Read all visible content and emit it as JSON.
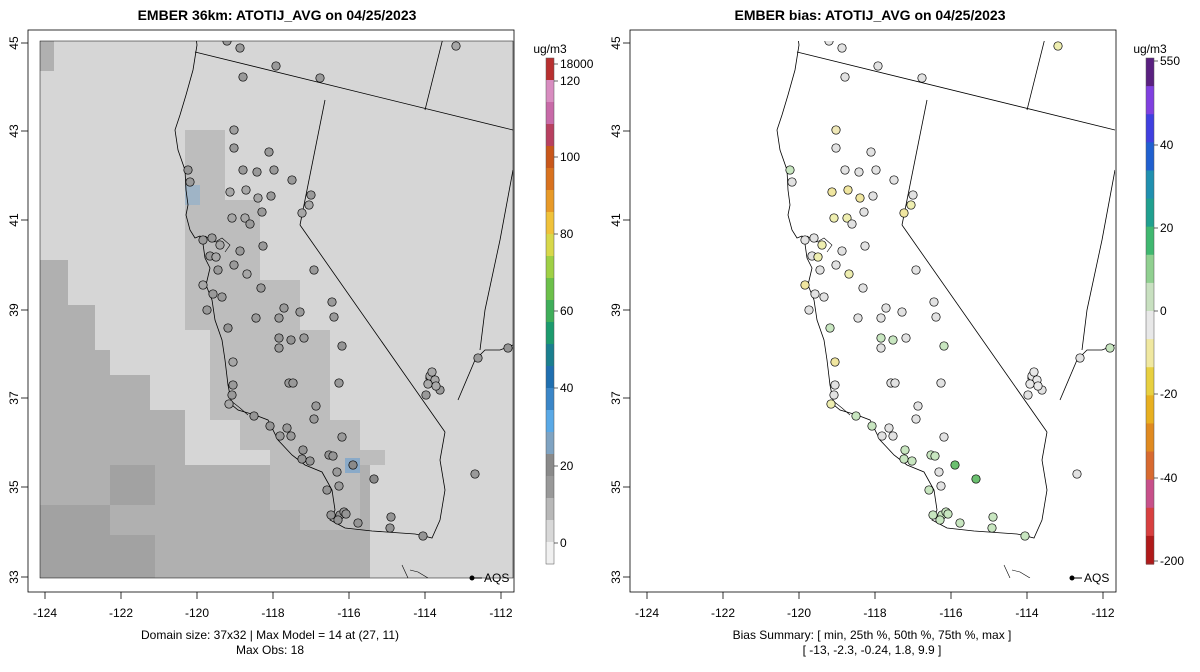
{
  "left_panel": {
    "title": "EMBER 36km: ATOTIJ_AVG on 04/25/2023",
    "footer_line1": "Domain size: 37x32 | Max Model = 14 at (27, 11)",
    "footer_line2": "Max Obs: 18",
    "colorbar_unit": "ug/m3",
    "colorbar_ticks": [
      "18000",
      "120",
      "100",
      "80",
      "60",
      "40",
      "20",
      "0"
    ],
    "colorbar_colors": [
      "#f0f0f0",
      "#d8d8d8",
      "#b8b8b8",
      "#999999",
      "#8a8a8a",
      "#7fa3c2",
      "#5aa9e6",
      "#3a86c8",
      "#1f6fb0",
      "#1a7f8f",
      "#1c9b6e",
      "#3fae5a",
      "#6cc04a",
      "#9fd045",
      "#d8d84a",
      "#f0c23a",
      "#e89a28",
      "#d9721e",
      "#c9571a",
      "#b84060",
      "#c86aa8",
      "#d88cc0",
      "#b83030"
    ],
    "point_legend": "AQS"
  },
  "right_panel": {
    "title": "EMBER bias: ATOTIJ_AVG on 04/25/2023",
    "footer_line1": "Bias Summary: [ min, 25th %, 50th %, 75th %, max ]",
    "footer_line2": "[ -13,   -2.3,   -0.24,   1.8,   9.9 ]",
    "colorbar_unit": "ug/m3",
    "colorbar_ticks": [
      "550",
      "40",
      "20",
      "0",
      "-20",
      "-40",
      "-200"
    ],
    "colorbar_colors": [
      "#b01a1a",
      "#d84040",
      "#c8508a",
      "#d86a30",
      "#e08a20",
      "#e8b020",
      "#e8d040",
      "#f0e8a0",
      "#e8e8e8",
      "#c8e0c0",
      "#90d090",
      "#40b870",
      "#20a090",
      "#2090b0",
      "#2060d0",
      "#4040e0",
      "#8040e0",
      "#5a2080"
    ],
    "point_legend": "AQS"
  },
  "x_ticks": [
    "-124",
    "-122",
    "-120",
    "-118",
    "-116",
    "-114",
    "-112"
  ],
  "y_ticks": [
    "45",
    "43",
    "41",
    "39",
    "37",
    "35",
    "33"
  ]
}
